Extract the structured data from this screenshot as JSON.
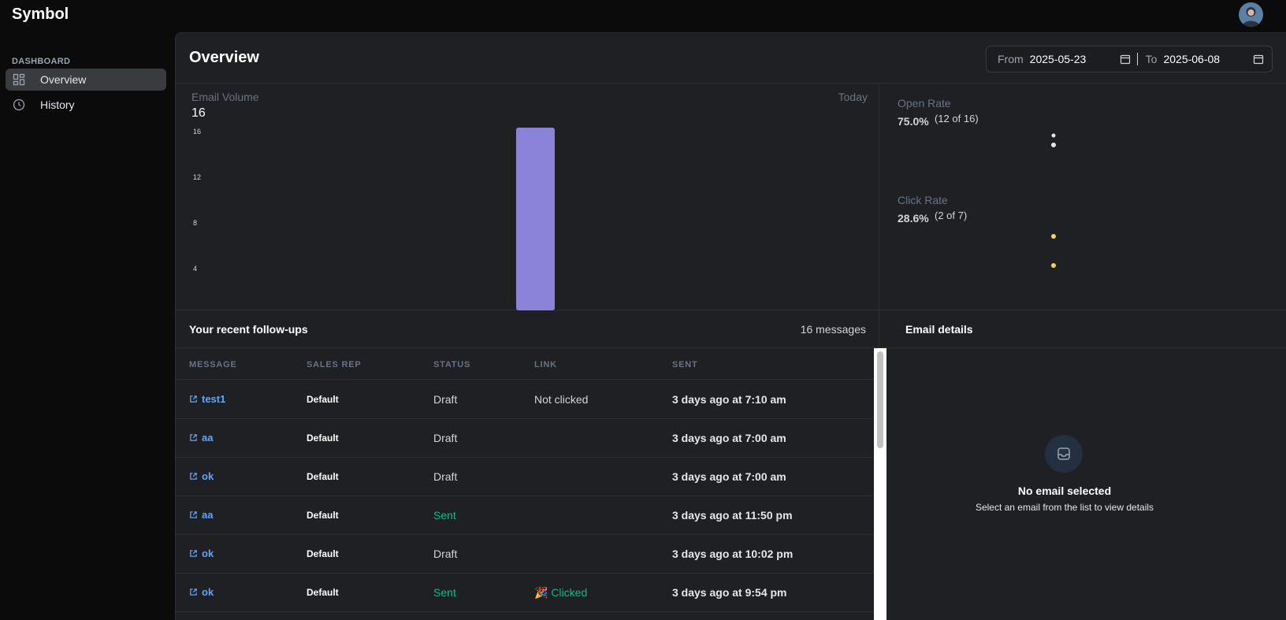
{
  "app": {
    "brand": "Symbol"
  },
  "sidebar": {
    "section": "DASHBOARD",
    "items": [
      {
        "label": "Overview",
        "icon": "grid-icon",
        "active": true
      },
      {
        "label": "History",
        "icon": "clock-icon",
        "active": false
      }
    ]
  },
  "header": {
    "title": "Overview",
    "from_label": "From",
    "from_value": "2025-05-23",
    "to_label": "To",
    "to_value": "2025-06-08"
  },
  "email_volume": {
    "label": "Email Volume",
    "value": "16",
    "range_label": "Today"
  },
  "chart_data": {
    "type": "bar",
    "ylim": [
      0,
      16
    ],
    "yticks": [
      "16",
      "12",
      "8",
      "4"
    ],
    "values": [
      16
    ],
    "color": "#8b83d9"
  },
  "rates": {
    "open": {
      "label": "Open Rate",
      "value": "75.0%",
      "detail": "(12 of 16)"
    },
    "click": {
      "label": "Click Rate",
      "value": "28.6%",
      "detail": "(2 of 7)"
    }
  },
  "followups": {
    "title": "Your recent follow-ups",
    "count": "16 messages",
    "columns": [
      "MESSAGE",
      "SALES REP",
      "STATUS",
      "LINK",
      "SENT"
    ],
    "rows": [
      {
        "message": "test1",
        "rep": "Default",
        "status": "Draft",
        "link": "Not clicked",
        "sent": "3 days ago at 7:10 am"
      },
      {
        "message": "aa",
        "rep": "Default",
        "status": "Draft",
        "link": "",
        "sent": "3 days ago at 7:00 am"
      },
      {
        "message": "ok",
        "rep": "Default",
        "status": "Draft",
        "link": "",
        "sent": "3 days ago at 7:00 am"
      },
      {
        "message": "aa",
        "rep": "Default",
        "status": "Sent",
        "link": "",
        "sent": "3 days ago at 11:50 pm"
      },
      {
        "message": "ok",
        "rep": "Default",
        "status": "Draft",
        "link": "",
        "sent": "3 days ago at 10:02 pm"
      },
      {
        "message": "ok",
        "rep": "Default",
        "status": "Sent",
        "link": "🎉 Clicked",
        "sent": "3 days ago at 9:54 pm"
      }
    ]
  },
  "details": {
    "title": "Email details",
    "empty_title": "No email selected",
    "empty_subtitle": "Select an email from the list to view details"
  }
}
